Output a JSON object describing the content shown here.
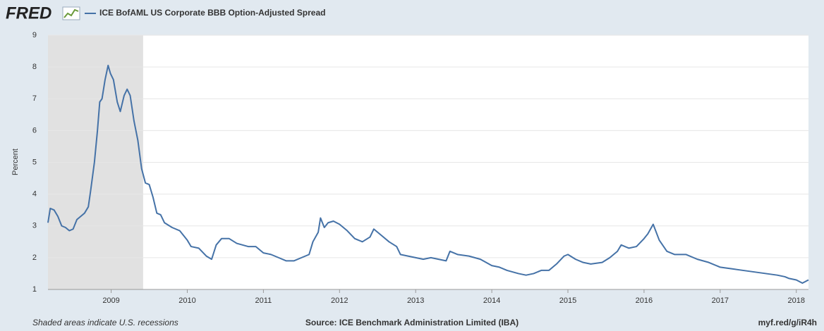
{
  "header": {
    "logo": "FRED"
  },
  "chart_data": {
    "type": "line",
    "ylabel": "Percent",
    "note": "Shaded areas indicate U.S. recessions",
    "source": "Source: ICE Benchmark Administration Limited (IBA)",
    "link": "myf.red/g/iR4h",
    "xlim": [
      2008.17,
      2018.16
    ],
    "xticks": [
      2009,
      2010,
      2011,
      2012,
      2013,
      2014,
      2015,
      2016,
      2017,
      2018
    ],
    "ylim": [
      1,
      9
    ],
    "yticks": [
      1,
      2,
      3,
      4,
      5,
      6,
      7,
      8,
      9
    ],
    "grid": true,
    "recessions": [
      [
        2007.92,
        2009.42
      ]
    ],
    "x": [
      2008.17,
      2008.2,
      2008.25,
      2008.3,
      2008.35,
      2008.4,
      2008.45,
      2008.5,
      2008.55,
      2008.6,
      2008.65,
      2008.7,
      2008.73,
      2008.78,
      2008.82,
      2008.85,
      2008.88,
      2008.92,
      2008.96,
      2008.99,
      2009.03,
      2009.08,
      2009.12,
      2009.17,
      2009.21,
      2009.25,
      2009.3,
      2009.35,
      2009.4,
      2009.45,
      2009.5,
      2009.55,
      2009.6,
      2009.65,
      2009.7,
      2009.8,
      2009.9,
      2010.0,
      2010.05,
      2010.15,
      2010.25,
      2010.32,
      2010.38,
      2010.45,
      2010.55,
      2010.65,
      2010.8,
      2010.9,
      2011.0,
      2011.1,
      2011.2,
      2011.3,
      2011.4,
      2011.5,
      2011.6,
      2011.65,
      2011.72,
      2011.75,
      2011.8,
      2011.85,
      2011.92,
      2012.0,
      2012.1,
      2012.2,
      2012.3,
      2012.4,
      2012.45,
      2012.55,
      2012.65,
      2012.75,
      2012.8,
      2012.9,
      2013.0,
      2013.1,
      2013.2,
      2013.3,
      2013.4,
      2013.45,
      2013.55,
      2013.7,
      2013.85,
      2014.0,
      2014.1,
      2014.2,
      2014.35,
      2014.45,
      2014.55,
      2014.65,
      2014.75,
      2014.85,
      2014.95,
      2015.0,
      2015.1,
      2015.2,
      2015.3,
      2015.45,
      2015.55,
      2015.65,
      2015.7,
      2015.8,
      2015.9,
      2016.0,
      2016.05,
      2016.12,
      2016.2,
      2016.3,
      2016.4,
      2016.55,
      2016.7,
      2016.85,
      2017.0,
      2017.15,
      2017.3,
      2017.45,
      2017.6,
      2017.75,
      2017.85,
      2017.9,
      2018.0,
      2018.08,
      2018.12,
      2018.16
    ],
    "series": [
      {
        "name": "ICE BofAML US Corporate BBB Option-Adjusted Spread",
        "color": "#4572a7",
        "values": [
          3.1,
          3.55,
          3.5,
          3.3,
          3.0,
          2.95,
          2.85,
          2.9,
          3.2,
          3.3,
          3.4,
          3.6,
          4.1,
          5.0,
          6.0,
          6.9,
          7.0,
          7.6,
          8.05,
          7.8,
          7.6,
          6.9,
          6.6,
          7.1,
          7.3,
          7.1,
          6.3,
          5.7,
          4.8,
          4.35,
          4.3,
          3.9,
          3.4,
          3.35,
          3.1,
          2.95,
          2.85,
          2.55,
          2.35,
          2.3,
          2.05,
          1.95,
          2.4,
          2.6,
          2.6,
          2.45,
          2.35,
          2.35,
          2.15,
          2.1,
          2.0,
          1.9,
          1.9,
          2.0,
          2.1,
          2.5,
          2.8,
          3.25,
          2.95,
          3.1,
          3.15,
          3.05,
          2.85,
          2.6,
          2.5,
          2.65,
          2.9,
          2.7,
          2.5,
          2.35,
          2.1,
          2.05,
          2.0,
          1.95,
          2.0,
          1.95,
          1.9,
          2.2,
          2.1,
          2.05,
          1.95,
          1.75,
          1.7,
          1.6,
          1.5,
          1.45,
          1.5,
          1.6,
          1.6,
          1.8,
          2.05,
          2.1,
          1.95,
          1.85,
          1.8,
          1.85,
          2.0,
          2.2,
          2.4,
          2.3,
          2.35,
          2.6,
          2.75,
          3.05,
          2.55,
          2.2,
          2.1,
          2.1,
          1.95,
          1.85,
          1.7,
          1.65,
          1.6,
          1.55,
          1.5,
          1.45,
          1.4,
          1.35,
          1.3,
          1.2,
          1.25,
          1.3
        ]
      }
    ]
  }
}
